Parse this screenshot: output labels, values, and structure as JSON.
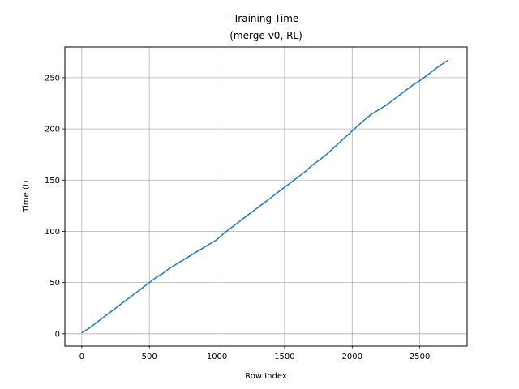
{
  "chart_data": {
    "type": "line",
    "title": "Training Time",
    "subtitle": "(merge-v0, RL)",
    "xlabel": "Row Index",
    "ylabel": "Time (t)",
    "xlim": [
      -125,
      2850
    ],
    "ylim": [
      -12,
      280
    ],
    "xticks": [
      0,
      500,
      1000,
      1500,
      2000,
      2500
    ],
    "yticks": [
      0,
      50,
      100,
      150,
      200,
      250
    ],
    "grid": true,
    "series": [
      {
        "color": "#1f77b4",
        "x": [
          0,
          50,
          100,
          150,
          200,
          250,
          300,
          350,
          400,
          450,
          500,
          550,
          600,
          650,
          700,
          750,
          800,
          850,
          900,
          950,
          1000,
          1050,
          1100,
          1150,
          1200,
          1250,
          1300,
          1350,
          1400,
          1450,
          1500,
          1550,
          1600,
          1650,
          1700,
          1750,
          1800,
          1850,
          1900,
          1950,
          2000,
          2050,
          2100,
          2150,
          2200,
          2250,
          2300,
          2350,
          2400,
          2450,
          2500,
          2550,
          2600,
          2650,
          2710
        ],
        "y": [
          1,
          5,
          10,
          15,
          20,
          25,
          30,
          35,
          40,
          45,
          50,
          55,
          59,
          64,
          68,
          72,
          76,
          80,
          84,
          88,
          92,
          98,
          103,
          108,
          113,
          118,
          123,
          128,
          133,
          138,
          143,
          148,
          153,
          158,
          164,
          169,
          174,
          180,
          186,
          192,
          198,
          204,
          210,
          215,
          219,
          223,
          228,
          233,
          238,
          243,
          247,
          252,
          257,
          262,
          267
        ]
      }
    ]
  }
}
